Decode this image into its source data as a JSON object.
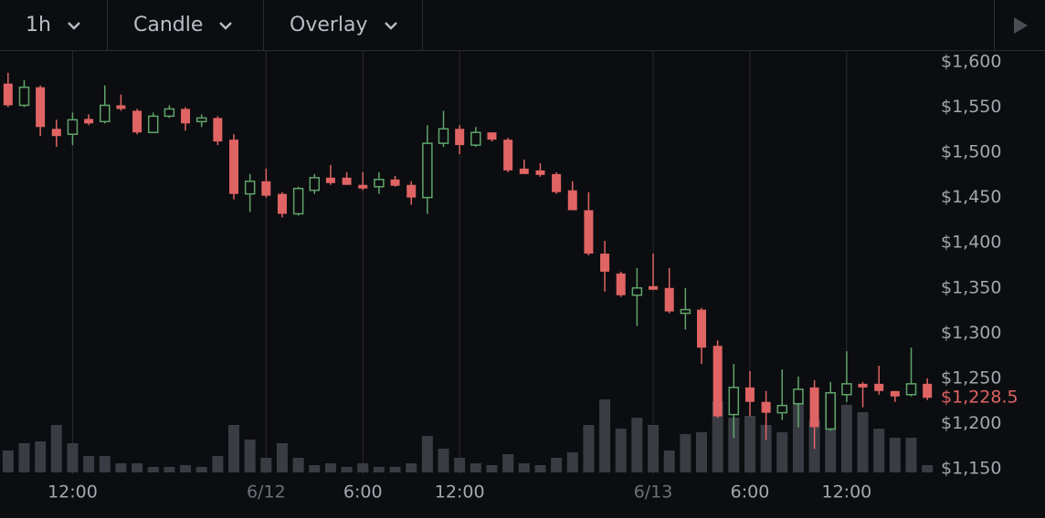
{
  "toolbar": {
    "interval": "1h",
    "chart_type": "Candle",
    "overlay": "Overlay"
  },
  "chart_data": {
    "type": "candlestick",
    "categories": [
      null,
      null,
      null,
      null,
      "12:00",
      null,
      null,
      null,
      null,
      null,
      null,
      null,
      null,
      null,
      null,
      null,
      "6/12",
      null,
      null,
      null,
      null,
      null,
      "6:00",
      null,
      null,
      null,
      null,
      null,
      "12:00",
      null,
      null,
      null,
      null,
      null,
      null,
      null,
      null,
      null,
      null,
      null,
      "6/13",
      null,
      null,
      null,
      null,
      null,
      "6:00",
      null,
      null,
      null,
      null,
      null,
      "12:00",
      null,
      null,
      null,
      null,
      null
    ],
    "open": [
      1576,
      1552,
      1572,
      1526,
      1520,
      1537,
      1534,
      1552,
      1546,
      1522,
      1540,
      1548,
      1534,
      1538,
      1514,
      1454,
      1468,
      1454,
      1432,
      1458,
      1472,
      1472,
      1464,
      1462,
      1470,
      1464,
      1450,
      1510,
      1526,
      1508,
      1522,
      1514,
      1482,
      1480,
      1476,
      1458,
      1436,
      1388,
      1366,
      1342,
      1352,
      1350,
      1322,
      1326,
      1286,
      1210,
      1240,
      1224,
      1212,
      1222,
      1240,
      1194,
      1232,
      1244,
      1244,
      1236,
      1232,
      1244
    ],
    "high": [
      1588,
      1580,
      1574,
      1536,
      1544,
      1542,
      1574,
      1564,
      1548,
      1544,
      1552,
      1550,
      1542,
      1540,
      1520,
      1476,
      1482,
      1456,
      1462,
      1476,
      1486,
      1478,
      1478,
      1478,
      1474,
      1468,
      1530,
      1546,
      1530,
      1528,
      1522,
      1516,
      1492,
      1488,
      1478,
      1468,
      1456,
      1402,
      1368,
      1372,
      1388,
      1372,
      1350,
      1328,
      1292,
      1266,
      1258,
      1236,
      1260,
      1252,
      1248,
      1246,
      1280,
      1246,
      1264,
      1236,
      1284,
      1250
    ],
    "low": [
      1550,
      1550,
      1518,
      1506,
      1508,
      1530,
      1532,
      1546,
      1520,
      1522,
      1538,
      1524,
      1528,
      1508,
      1448,
      1434,
      1450,
      1428,
      1430,
      1454,
      1464,
      1464,
      1458,
      1454,
      1462,
      1442,
      1432,
      1506,
      1498,
      1506,
      1512,
      1478,
      1476,
      1473,
      1454,
      1436,
      1386,
      1346,
      1340,
      1308,
      1348,
      1322,
      1304,
      1266,
      1206,
      1184,
      1208,
      1182,
      1204,
      1196,
      1172,
      1192,
      1224,
      1218,
      1232,
      1224,
      1230,
      1226
    ],
    "close": [
      1552,
      1572,
      1528,
      1518,
      1536,
      1532,
      1552,
      1548,
      1522,
      1540,
      1548,
      1532,
      1538,
      1512,
      1454,
      1468,
      1452,
      1432,
      1460,
      1472,
      1466,
      1464,
      1460,
      1470,
      1463,
      1450,
      1510,
      1526,
      1508,
      1522,
      1514,
      1480,
      1476,
      1475,
      1456,
      1436,
      1388,
      1368,
      1342,
      1350,
      1348,
      1324,
      1326,
      1284,
      1208,
      1240,
      1224,
      1212,
      1220,
      1238,
      1196,
      1234,
      1244,
      1240,
      1236,
      1230,
      1244,
      1228.5
    ],
    "volume": [
      24,
      32,
      34,
      52,
      32,
      18,
      18,
      10,
      10,
      6,
      6,
      8,
      6,
      18,
      52,
      36,
      16,
      32,
      16,
      8,
      10,
      6,
      10,
      6,
      6,
      10,
      40,
      26,
      16,
      10,
      8,
      20,
      10,
      8,
      16,
      22,
      52,
      80,
      48,
      60,
      52,
      24,
      42,
      44,
      78,
      60,
      62,
      52,
      44,
      78,
      58,
      88,
      74,
      66,
      48,
      38,
      38,
      8
    ],
    "volume_ylim": [
      0,
      120
    ],
    "up_color": "#5fa56b",
    "down_color": "#e06464",
    "volume_color": "#393c43",
    "ylim": [
      1144,
      1612
    ],
    "yticks": [
      {
        "value": 1150,
        "label": "$1,150"
      },
      {
        "value": 1200,
        "label": "$1,200"
      },
      {
        "value": 1250,
        "label": "$1,250"
      },
      {
        "value": 1300,
        "label": "$1,300"
      },
      {
        "value": 1350,
        "label": "$1,350"
      },
      {
        "value": 1400,
        "label": "$1,400"
      },
      {
        "value": 1450,
        "label": "$1,450"
      },
      {
        "value": 1500,
        "label": "$1,500"
      },
      {
        "value": 1550,
        "label": "$1,550"
      },
      {
        "value": 1600,
        "label": "$1,600"
      }
    ],
    "grid": "x",
    "last_price": {
      "value": 1228.5,
      "label": "$1,228.5"
    }
  }
}
